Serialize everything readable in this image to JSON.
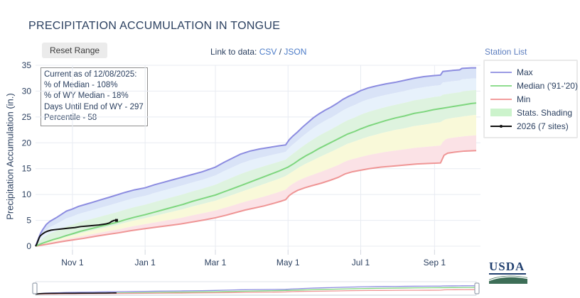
{
  "title": "PRECIPITATION ACCUMULATION IN TONGUE",
  "toolbar": {
    "reset_button": "Reset Range",
    "link_prefix": "Link to data: ",
    "csv_label": "CSV",
    "separator": " / ",
    "json_label": "JSON",
    "station_list": "Station List"
  },
  "info_box": {
    "lines": [
      "Current as of 12/08/2025:",
      "% of Median - 108%",
      "% of WY Median - 18%",
      "Days Until End of WY - 297",
      "Percentile - 58"
    ]
  },
  "legend": {
    "items": [
      {
        "label": "Max",
        "type": "line",
        "color": "#9a9ae4"
      },
      {
        "label": "Median ('91-'20)",
        "type": "line",
        "color": "#8fdd8f"
      },
      {
        "label": "Min",
        "type": "line",
        "color": "#f29c9c"
      },
      {
        "label": "Stats. Shading",
        "type": "patch",
        "color": "#ccf3cc"
      },
      {
        "label": "2026 (7 sites)",
        "type": "line-marker",
        "color": "#111111"
      }
    ]
  },
  "usda_logo": {
    "text": "USDA"
  },
  "colors": {
    "title_text": "#2a3f5f",
    "grid": "#e8ebf2",
    "tick_mark": "#d3d7e0",
    "max_line": "#8c8ce0",
    "median_line": "#7ed67e",
    "min_line": "#ef9595",
    "current_line": "#111111",
    "band_colors": [
      "#d9e3f7",
      "#e7f1fb",
      "#def3df",
      "#f9f9d9",
      "#fbe2e6"
    ],
    "slider_border": "#dfe3ea",
    "slider_handle": "#9aa3b0"
  },
  "chart_data": {
    "type": "line",
    "title": "PRECIPITATION ACCUMULATION IN TONGUE",
    "xlabel": "",
    "ylabel": "Precipitation Accumulation (in.)",
    "x_unit": "days since Oct 1 (water year 2026)",
    "xlim": [
      0,
      370
    ],
    "ylim": [
      0,
      35
    ],
    "yticks": [
      0,
      5,
      10,
      15,
      20,
      25,
      30,
      35
    ],
    "xticks": [
      {
        "day": 31,
        "label": "Nov 1"
      },
      {
        "day": 92,
        "label": "Jan 1"
      },
      {
        "day": 151,
        "label": "Mar 1"
      },
      {
        "day": 212,
        "label": "May 1"
      },
      {
        "day": 273,
        "label": "Jul 1"
      },
      {
        "day": 335,
        "label": "Sep 1"
      }
    ],
    "legend_position": "top-right",
    "grid": true,
    "range_slider": true,
    "stat_band_factors": {
      "upper": [
        0.7,
        0.37
      ],
      "lower": [
        0.25,
        0.68
      ]
    },
    "series": [
      {
        "name": "Max",
        "points": [
          [
            0,
            0
          ],
          [
            2,
            1.2
          ],
          [
            4,
            2.4
          ],
          [
            6,
            3.2
          ],
          [
            9,
            4.2
          ],
          [
            12,
            4.8
          ],
          [
            15,
            5.2
          ],
          [
            18,
            5.6
          ],
          [
            22,
            6.2
          ],
          [
            26,
            6.8
          ],
          [
            31,
            7.2
          ],
          [
            36,
            7.7
          ],
          [
            42,
            8.1
          ],
          [
            48,
            8.5
          ],
          [
            55,
            9.0
          ],
          [
            61,
            9.4
          ],
          [
            68,
            9.9
          ],
          [
            75,
            10.4
          ],
          [
            83,
            10.9
          ],
          [
            92,
            11.3
          ],
          [
            100,
            11.9
          ],
          [
            108,
            12.4
          ],
          [
            116,
            12.9
          ],
          [
            124,
            13.4
          ],
          [
            132,
            13.9
          ],
          [
            140,
            14.4
          ],
          [
            151,
            15.3
          ],
          [
            158,
            16.2
          ],
          [
            165,
            17.0
          ],
          [
            172,
            17.8
          ],
          [
            180,
            18.4
          ],
          [
            188,
            18.8
          ],
          [
            196,
            19.1
          ],
          [
            204,
            19.4
          ],
          [
            210,
            19.6
          ],
          [
            213,
            20.6
          ],
          [
            216,
            21.3
          ],
          [
            220,
            22.1
          ],
          [
            224,
            23.0
          ],
          [
            228,
            23.8
          ],
          [
            233,
            24.8
          ],
          [
            238,
            25.6
          ],
          [
            243,
            26.3
          ],
          [
            248,
            26.9
          ],
          [
            253,
            27.6
          ],
          [
            258,
            28.4
          ],
          [
            263,
            29.0
          ],
          [
            268,
            29.5
          ],
          [
            273,
            30.1
          ],
          [
            279,
            30.6
          ],
          [
            286,
            31.0
          ],
          [
            294,
            31.4
          ],
          [
            302,
            31.7
          ],
          [
            310,
            32.1
          ],
          [
            318,
            32.5
          ],
          [
            326,
            32.8
          ],
          [
            334,
            33.0
          ],
          [
            340,
            33.1
          ],
          [
            342,
            33.8
          ],
          [
            350,
            34.0
          ],
          [
            356,
            34.1
          ],
          [
            358,
            34.4
          ],
          [
            366,
            34.5
          ],
          [
            370,
            34.5
          ]
        ]
      },
      {
        "name": "Median ('91-'20)",
        "points": [
          [
            0,
            0
          ],
          [
            5,
            0.5
          ],
          [
            10,
            0.9
          ],
          [
            15,
            1.3
          ],
          [
            20,
            1.6
          ],
          [
            25,
            2.0
          ],
          [
            31,
            2.4
          ],
          [
            38,
            2.9
          ],
          [
            45,
            3.3
          ],
          [
            52,
            3.7
          ],
          [
            61,
            4.2
          ],
          [
            68,
            4.6
          ],
          [
            75,
            5.1
          ],
          [
            83,
            5.6
          ],
          [
            92,
            6.1
          ],
          [
            100,
            6.6
          ],
          [
            108,
            7.1
          ],
          [
            116,
            7.6
          ],
          [
            124,
            8.1
          ],
          [
            132,
            8.7
          ],
          [
            140,
            9.2
          ],
          [
            151,
            9.9
          ],
          [
            158,
            10.5
          ],
          [
            165,
            11.1
          ],
          [
            172,
            11.7
          ],
          [
            180,
            12.4
          ],
          [
            188,
            13.1
          ],
          [
            196,
            13.8
          ],
          [
            204,
            14.5
          ],
          [
            212,
            15.3
          ],
          [
            217,
            16.0
          ],
          [
            222,
            16.8
          ],
          [
            227,
            17.5
          ],
          [
            232,
            18.1
          ],
          [
            238,
            18.9
          ],
          [
            244,
            19.6
          ],
          [
            250,
            20.3
          ],
          [
            256,
            21.0
          ],
          [
            262,
            21.7
          ],
          [
            268,
            22.2
          ],
          [
            273,
            22.7
          ],
          [
            280,
            23.3
          ],
          [
            287,
            23.8
          ],
          [
            294,
            24.3
          ],
          [
            302,
            24.8
          ],
          [
            310,
            25.2
          ],
          [
            318,
            25.7
          ],
          [
            326,
            26.0
          ],
          [
            334,
            26.4
          ],
          [
            342,
            26.7
          ],
          [
            350,
            27.0
          ],
          [
            358,
            27.3
          ],
          [
            366,
            27.6
          ],
          [
            370,
            27.7
          ]
        ]
      },
      {
        "name": "Min",
        "points": [
          [
            0,
            0
          ],
          [
            5,
            0.2
          ],
          [
            10,
            0.4
          ],
          [
            15,
            0.6
          ],
          [
            20,
            0.8
          ],
          [
            25,
            1.0
          ],
          [
            31,
            1.2
          ],
          [
            40,
            1.5
          ],
          [
            50,
            1.9
          ],
          [
            61,
            2.3
          ],
          [
            70,
            2.6
          ],
          [
            80,
            3.0
          ],
          [
            92,
            3.4
          ],
          [
            102,
            3.7
          ],
          [
            112,
            4.0
          ],
          [
            122,
            4.3
          ],
          [
            132,
            4.7
          ],
          [
            142,
            5.1
          ],
          [
            151,
            5.5
          ],
          [
            160,
            6.0
          ],
          [
            168,
            6.5
          ],
          [
            176,
            7.0
          ],
          [
            184,
            7.4
          ],
          [
            192,
            7.8
          ],
          [
            200,
            8.3
          ],
          [
            206,
            8.7
          ],
          [
            210,
            9.0
          ],
          [
            213,
            9.8
          ],
          [
            216,
            10.3
          ],
          [
            220,
            10.8
          ],
          [
            226,
            11.3
          ],
          [
            232,
            11.7
          ],
          [
            240,
            12.2
          ],
          [
            248,
            12.8
          ],
          [
            254,
            13.3
          ],
          [
            260,
            14.0
          ],
          [
            266,
            14.4
          ],
          [
            273,
            14.7
          ],
          [
            280,
            15.0
          ],
          [
            290,
            15.3
          ],
          [
            300,
            15.5
          ],
          [
            310,
            15.7
          ],
          [
            320,
            15.9
          ],
          [
            330,
            16.0
          ],
          [
            340,
            16.1
          ],
          [
            343,
            17.6
          ],
          [
            346,
            18.0
          ],
          [
            352,
            18.2
          ],
          [
            360,
            18.4
          ],
          [
            370,
            18.5
          ]
        ]
      },
      {
        "name": "2026 (7 sites)",
        "points": [
          [
            0,
            0
          ],
          [
            1,
            0.4
          ],
          [
            2,
            1.0
          ],
          [
            3,
            1.6
          ],
          [
            4,
            2.0
          ],
          [
            6,
            2.4
          ],
          [
            8,
            2.7
          ],
          [
            10,
            2.9
          ],
          [
            13,
            3.1
          ],
          [
            16,
            3.2
          ],
          [
            20,
            3.3
          ],
          [
            24,
            3.4
          ],
          [
            28,
            3.5
          ],
          [
            33,
            3.6
          ],
          [
            38,
            3.8
          ],
          [
            43,
            3.9
          ],
          [
            48,
            4.0
          ],
          [
            53,
            4.1
          ],
          [
            56,
            4.2
          ],
          [
            59,
            4.3
          ],
          [
            62,
            4.5
          ],
          [
            64,
            4.8
          ],
          [
            66,
            5.0
          ],
          [
            68,
            5.0
          ]
        ]
      }
    ]
  }
}
